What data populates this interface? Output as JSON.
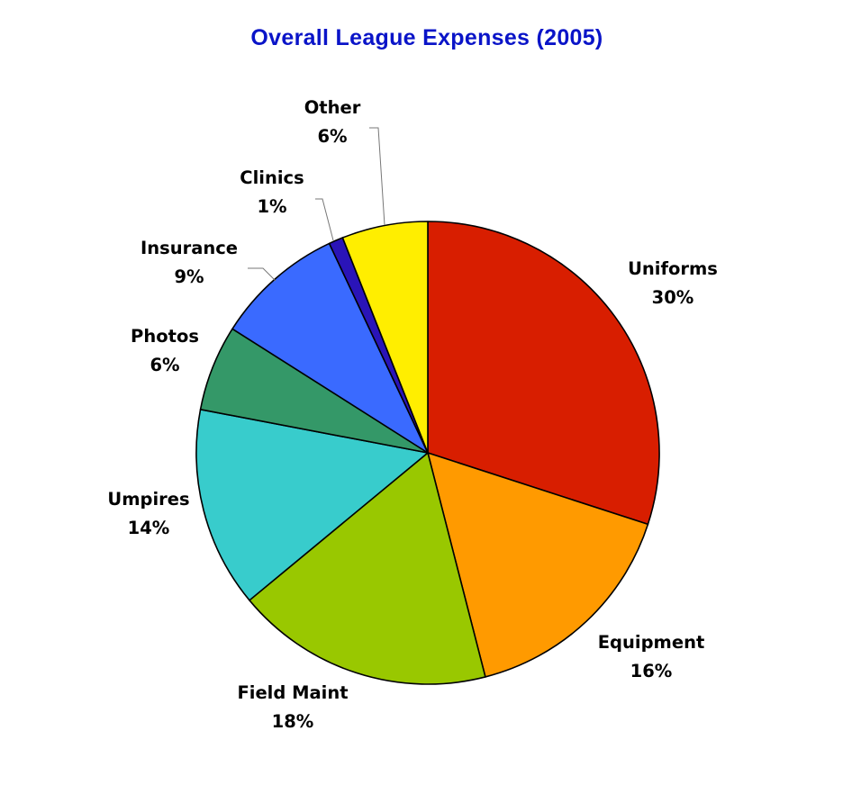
{
  "chart_data": {
    "type": "pie",
    "title": "Overall League Expenses (2005)",
    "title_color": "#0a14c8",
    "slices": [
      {
        "name": "Uniforms",
        "value": 30,
        "label": "30%",
        "color": "#d81e00"
      },
      {
        "name": "Equipment",
        "value": 16,
        "label": "16%",
        "color": "#ff9a00"
      },
      {
        "name": "Field Maint",
        "value": 18,
        "label": "18%",
        "color": "#99c800"
      },
      {
        "name": "Umpires",
        "value": 14,
        "label": "14%",
        "color": "#38cccc"
      },
      {
        "name": "Photos",
        "value": 6,
        "label": "6%",
        "color": "#349868"
      },
      {
        "name": "Insurance",
        "value": 9,
        "label": "9%",
        "color": "#3a6aff"
      },
      {
        "name": "Clinics",
        "value": 1,
        "label": "1%",
        "color": "#2a14b8"
      },
      {
        "name": "Other",
        "value": 6,
        "label": "6%",
        "color": "#ffee00"
      }
    ],
    "start_angle": "12 o'clock",
    "direction": "clockwise",
    "legend": "none"
  }
}
